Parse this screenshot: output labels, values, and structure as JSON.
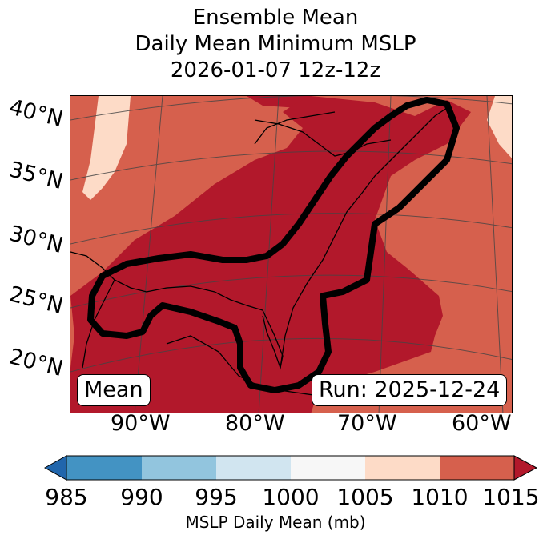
{
  "title": {
    "line1": "Ensemble Mean",
    "line2": "Daily Mean Minimum MSLP",
    "line3": "2026-01-07 12z-12z"
  },
  "map": {
    "lat_labels": [
      "40°N",
      "35°N",
      "30°N",
      "25°N",
      "20°N"
    ],
    "lon_labels": [
      "90°W",
      "80°W",
      "70°W",
      "60°W"
    ],
    "contour_color": "#000000",
    "fill_colors": {
      "985": "#2166ac",
      "985-990": "#4393c3",
      "990-995": "#92c5de",
      "995-1000": "#d1e5f0",
      "1000-1005": "#f7f7f7",
      "1005-1010": "#fddbc7",
      "1010-1015": "#d6604d",
      "1015+": "#b2182b"
    }
  },
  "annotations": {
    "left": "Mean",
    "right": "Run: 2025-12-24"
  },
  "colorbar": {
    "ticks": [
      "985",
      "990",
      "995",
      "1000",
      "1005",
      "1010",
      "1015"
    ],
    "label": "MSLP Daily Mean (mb)"
  }
}
